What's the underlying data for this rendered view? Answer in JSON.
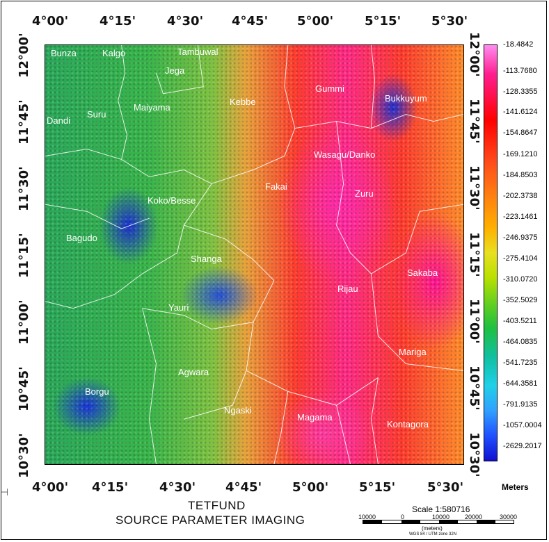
{
  "title": {
    "line1": "TETFUND",
    "line2": "SOURCE PARAMETER IMAGING"
  },
  "top_ticks": [
    "4°00'",
    "4°15'",
    "4°30'",
    "4°45'",
    "5°00'",
    "5°15'",
    "5°30'"
  ],
  "bottom_ticks": [
    "4°00'",
    "4°15'",
    "4°30'",
    "4°45'",
    "5°00'",
    "5°15'",
    "5°30'"
  ],
  "left_ticks": [
    "12°00'",
    "11°45'",
    "11°30'",
    "11°15'",
    "11°00'",
    "10°45'",
    "10°30'"
  ],
  "right_ticks": [
    "12°00'",
    "11°45'",
    "11°30'",
    "11°15'",
    "11°00'",
    "10°45'",
    "10°30'"
  ],
  "towns": [
    {
      "name": "Bunza"
    },
    {
      "name": "Kalgo"
    },
    {
      "name": "Tambuwal"
    },
    {
      "name": "Jega"
    },
    {
      "name": "Gummi"
    },
    {
      "name": "Bukkuyum"
    },
    {
      "name": "Dandi"
    },
    {
      "name": "Suru"
    },
    {
      "name": "Maiyama"
    },
    {
      "name": "Kebbe"
    },
    {
      "name": "Wasagu/Danko"
    },
    {
      "name": "Fakai"
    },
    {
      "name": "Zuru"
    },
    {
      "name": "Koko/Besse"
    },
    {
      "name": "Bagudo"
    },
    {
      "name": "Shanga"
    },
    {
      "name": "Sakaba"
    },
    {
      "name": "Rijau"
    },
    {
      "name": "Yauri"
    },
    {
      "name": "Mariga"
    },
    {
      "name": "Agwara"
    },
    {
      "name": "Borgu"
    },
    {
      "name": "Ngaski"
    },
    {
      "name": "Magama"
    },
    {
      "name": "Kontagora"
    }
  ],
  "legend": {
    "units": "Meters",
    "labels": [
      "-18.4842",
      "-113.7680",
      "-128.3355",
      "-141.6124",
      "-154.8647",
      "-169.1210",
      "-184.8503",
      "-202.3738",
      "-223.1461",
      "-246.9375",
      "-275.4104",
      "-310.0720",
      "-352.5029",
      "-403.5211",
      "-464.0835",
      "-541.7235",
      "-644.3581",
      "-791.9135",
      "-1057.0004",
      "-2629.2017"
    ]
  },
  "scale": {
    "title": "Scale 1:580716",
    "numbers": [
      "10000",
      "0",
      "10000",
      "20000",
      "30000"
    ],
    "unit": "(meters)",
    "projection": "WGS 84 / UTM zone 32N"
  }
}
